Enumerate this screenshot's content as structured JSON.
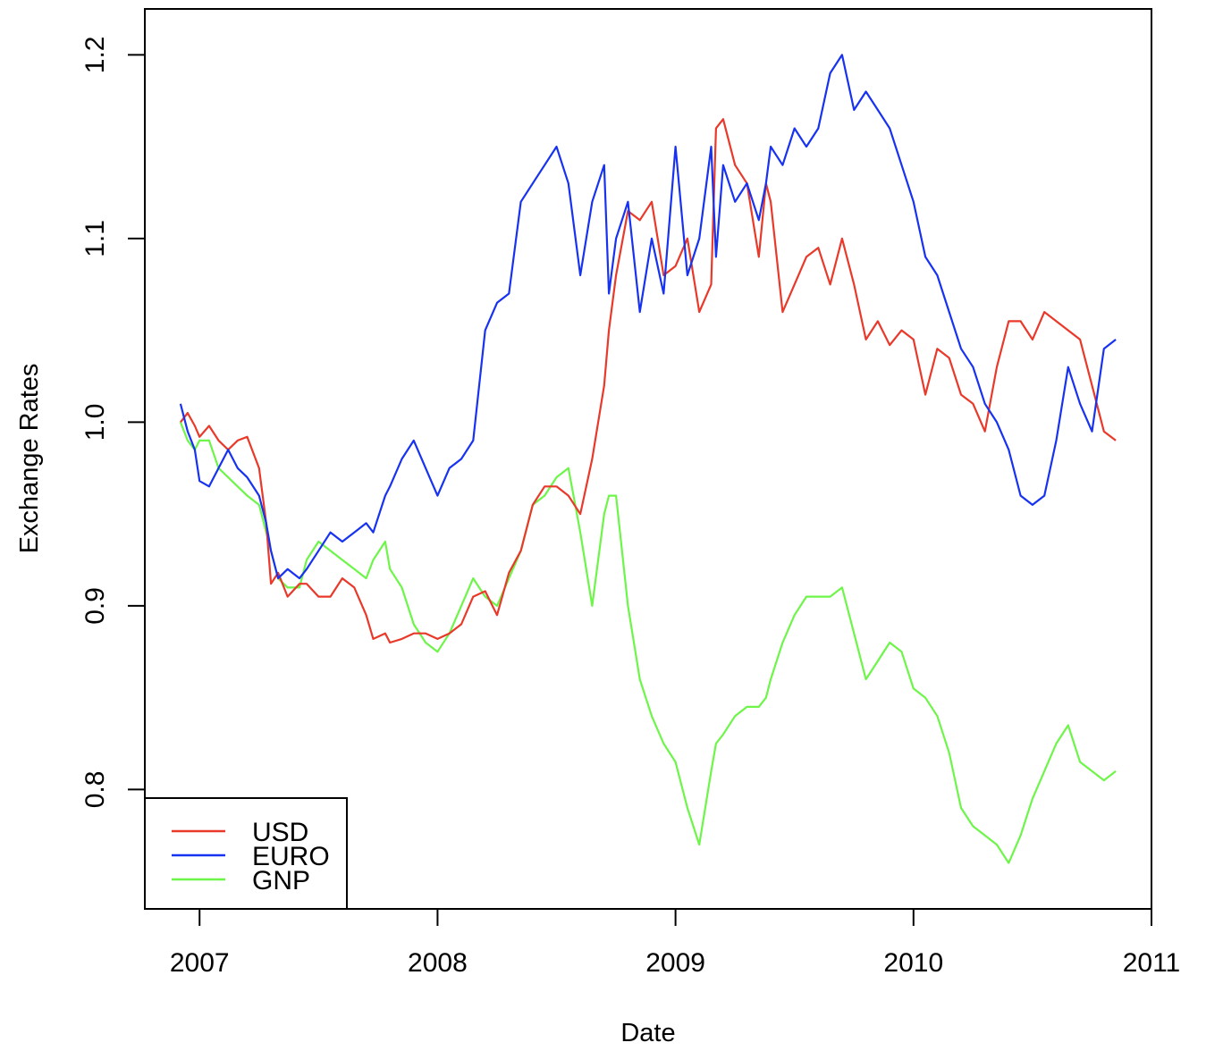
{
  "chart_data": {
    "type": "line",
    "title": "",
    "xlabel": "Date",
    "ylabel": "Exchange Rates",
    "xlim": [
      2006.77,
      2011.0
    ],
    "ylim": [
      0.735,
      1.225
    ],
    "x_ticks": [
      2007,
      2008,
      2009,
      2010,
      2011
    ],
    "x_tick_labels": [
      "2007",
      "2008",
      "2009",
      "2010",
      "2011"
    ],
    "y_ticks": [
      0.8,
      0.9,
      1.0,
      1.1,
      1.2
    ],
    "y_tick_labels": [
      "0.8",
      "0.9",
      "1.0",
      "1.1",
      "1.2"
    ],
    "grid": false,
    "legend_position": "bottom-left",
    "series": [
      {
        "name": "USD",
        "color": "#e8392a",
        "x": [
          2006.92,
          2006.95,
          2006.98,
          2007.0,
          2007.04,
          2007.08,
          2007.12,
          2007.16,
          2007.2,
          2007.25,
          2007.28,
          2007.3,
          2007.33,
          2007.37,
          2007.42,
          2007.45,
          2007.5,
          2007.55,
          2007.6,
          2007.65,
          2007.7,
          2007.73,
          2007.78,
          2007.8,
          2007.85,
          2007.9,
          2007.95,
          2008.0,
          2008.05,
          2008.1,
          2008.15,
          2008.2,
          2008.25,
          2008.3,
          2008.35,
          2008.4,
          2008.45,
          2008.5,
          2008.55,
          2008.6,
          2008.65,
          2008.7,
          2008.72,
          2008.75,
          2008.8,
          2008.85,
          2008.9,
          2008.95,
          2009.0,
          2009.05,
          2009.1,
          2009.15,
          2009.17,
          2009.2,
          2009.25,
          2009.3,
          2009.35,
          2009.38,
          2009.4,
          2009.45,
          2009.5,
          2009.55,
          2009.6,
          2009.65,
          2009.7,
          2009.75,
          2009.8,
          2009.85,
          2009.9,
          2009.95,
          2010.0,
          2010.05,
          2010.1,
          2010.15,
          2010.2,
          2010.25,
          2010.3,
          2010.35,
          2010.4,
          2010.45,
          2010.5,
          2010.55,
          2010.6,
          2010.65,
          2010.7,
          2010.75,
          2010.8,
          2010.85
        ],
        "y": [
          1.0,
          1.005,
          0.998,
          0.992,
          0.998,
          0.99,
          0.985,
          0.99,
          0.992,
          0.975,
          0.945,
          0.912,
          0.918,
          0.905,
          0.912,
          0.912,
          0.905,
          0.905,
          0.915,
          0.91,
          0.895,
          0.882,
          0.885,
          0.88,
          0.882,
          0.885,
          0.885,
          0.882,
          0.885,
          0.89,
          0.905,
          0.908,
          0.895,
          0.918,
          0.93,
          0.955,
          0.965,
          0.965,
          0.96,
          0.95,
          0.98,
          1.02,
          1.05,
          1.08,
          1.115,
          1.11,
          1.12,
          1.08,
          1.085,
          1.1,
          1.06,
          1.075,
          1.16,
          1.165,
          1.14,
          1.13,
          1.09,
          1.13,
          1.12,
          1.06,
          1.075,
          1.09,
          1.095,
          1.075,
          1.1,
          1.075,
          1.045,
          1.055,
          1.042,
          1.05,
          1.045,
          1.015,
          1.04,
          1.035,
          1.015,
          1.01,
          0.995,
          1.03,
          1.055,
          1.055,
          1.045,
          1.06,
          1.055,
          1.05,
          1.045,
          1.02,
          0.995,
          0.99
        ]
      },
      {
        "name": "EURO",
        "color": "#1732f0",
        "x": [
          2006.92,
          2006.95,
          2006.98,
          2007.0,
          2007.04,
          2007.08,
          2007.12,
          2007.16,
          2007.2,
          2007.25,
          2007.28,
          2007.3,
          2007.33,
          2007.37,
          2007.42,
          2007.45,
          2007.5,
          2007.55,
          2007.6,
          2007.65,
          2007.7,
          2007.73,
          2007.78,
          2007.8,
          2007.85,
          2007.9,
          2007.95,
          2008.0,
          2008.05,
          2008.1,
          2008.15,
          2008.2,
          2008.25,
          2008.3,
          2008.35,
          2008.4,
          2008.45,
          2008.5,
          2008.55,
          2008.6,
          2008.65,
          2008.7,
          2008.72,
          2008.75,
          2008.8,
          2008.85,
          2008.9,
          2008.95,
          2009.0,
          2009.05,
          2009.1,
          2009.15,
          2009.17,
          2009.2,
          2009.25,
          2009.3,
          2009.35,
          2009.38,
          2009.4,
          2009.45,
          2009.5,
          2009.55,
          2009.6,
          2009.65,
          2009.7,
          2009.75,
          2009.8,
          2009.85,
          2009.9,
          2009.95,
          2010.0,
          2010.05,
          2010.1,
          2010.15,
          2010.2,
          2010.25,
          2010.3,
          2010.35,
          2010.4,
          2010.45,
          2010.5,
          2010.55,
          2010.6,
          2010.65,
          2010.7,
          2010.75,
          2010.8,
          2010.85
        ],
        "y": [
          1.01,
          0.995,
          0.985,
          0.968,
          0.965,
          0.975,
          0.985,
          0.975,
          0.97,
          0.96,
          0.945,
          0.93,
          0.915,
          0.92,
          0.915,
          0.92,
          0.93,
          0.94,
          0.935,
          0.94,
          0.945,
          0.94,
          0.96,
          0.965,
          0.98,
          0.99,
          0.975,
          0.96,
          0.975,
          0.98,
          0.99,
          1.05,
          1.065,
          1.07,
          1.12,
          1.13,
          1.14,
          1.15,
          1.13,
          1.08,
          1.12,
          1.14,
          1.07,
          1.1,
          1.12,
          1.06,
          1.1,
          1.07,
          1.15,
          1.08,
          1.1,
          1.15,
          1.09,
          1.14,
          1.12,
          1.13,
          1.11,
          1.13,
          1.15,
          1.14,
          1.16,
          1.15,
          1.16,
          1.19,
          1.2,
          1.17,
          1.18,
          1.17,
          1.16,
          1.14,
          1.12,
          1.09,
          1.08,
          1.06,
          1.04,
          1.03,
          1.01,
          1.0,
          0.985,
          0.96,
          0.955,
          0.96,
          0.99,
          1.03,
          1.01,
          0.995,
          1.04,
          1.045
        ]
      },
      {
        "name": "GNP",
        "color": "#6df549",
        "x": [
          2006.92,
          2006.95,
          2006.98,
          2007.0,
          2007.04,
          2007.08,
          2007.12,
          2007.16,
          2007.2,
          2007.25,
          2007.28,
          2007.3,
          2007.33,
          2007.37,
          2007.42,
          2007.45,
          2007.5,
          2007.55,
          2007.6,
          2007.65,
          2007.7,
          2007.73,
          2007.78,
          2007.8,
          2007.85,
          2007.9,
          2007.95,
          2008.0,
          2008.05,
          2008.1,
          2008.15,
          2008.2,
          2008.25,
          2008.3,
          2008.35,
          2008.4,
          2008.45,
          2008.5,
          2008.55,
          2008.6,
          2008.65,
          2008.7,
          2008.72,
          2008.75,
          2008.8,
          2008.85,
          2008.9,
          2008.95,
          2009.0,
          2009.05,
          2009.1,
          2009.15,
          2009.17,
          2009.2,
          2009.25,
          2009.3,
          2009.35,
          2009.38,
          2009.4,
          2009.45,
          2009.5,
          2009.55,
          2009.6,
          2009.65,
          2009.7,
          2009.75,
          2009.8,
          2009.85,
          2009.9,
          2009.95,
          2010.0,
          2010.05,
          2010.1,
          2010.15,
          2010.2,
          2010.25,
          2010.3,
          2010.35,
          2010.4,
          2010.45,
          2010.5,
          2010.55,
          2010.6,
          2010.65,
          2010.7,
          2010.75,
          2010.8,
          2010.85
        ],
        "y": [
          1.0,
          0.99,
          0.985,
          0.99,
          0.99,
          0.975,
          0.97,
          0.965,
          0.96,
          0.955,
          0.94,
          0.93,
          0.915,
          0.91,
          0.91,
          0.925,
          0.935,
          0.93,
          0.925,
          0.92,
          0.915,
          0.925,
          0.935,
          0.92,
          0.91,
          0.89,
          0.88,
          0.875,
          0.885,
          0.9,
          0.915,
          0.905,
          0.9,
          0.915,
          0.93,
          0.955,
          0.96,
          0.97,
          0.975,
          0.94,
          0.9,
          0.95,
          0.96,
          0.96,
          0.9,
          0.86,
          0.84,
          0.825,
          0.815,
          0.79,
          0.77,
          0.81,
          0.825,
          0.83,
          0.84,
          0.845,
          0.845,
          0.85,
          0.86,
          0.88,
          0.895,
          0.905,
          0.905,
          0.905,
          0.91,
          0.885,
          0.86,
          0.87,
          0.88,
          0.875,
          0.855,
          0.85,
          0.84,
          0.82,
          0.79,
          0.78,
          0.775,
          0.77,
          0.76,
          0.775,
          0.795,
          0.81,
          0.825,
          0.835,
          0.815,
          0.81,
          0.805,
          0.81
        ]
      }
    ]
  }
}
